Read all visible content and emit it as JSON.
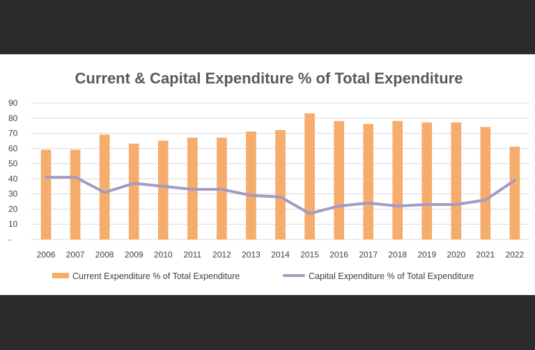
{
  "colors": {
    "bar": "#f6ad6b",
    "bar_stroke": "#f2a05a",
    "line": "#a49ac8",
    "grid": "#d9d9d9",
    "text": "#404040"
  },
  "chart_data": {
    "type": "bar",
    "title": "Current & Capital Expenditure % of Total Expenditure",
    "categories": [
      "2006",
      "2007",
      "2008",
      "2009",
      "2010",
      "2011",
      "2012",
      "2013",
      "2014",
      "2015",
      "2016",
      "2017",
      "2018",
      "2019",
      "2020",
      "2021",
      "2022"
    ],
    "series": [
      {
        "name": "Current Expenditure % of Total Expenditure",
        "type": "bar",
        "values": [
          59,
          59,
          69,
          63,
          65,
          67,
          67,
          71,
          72,
          83,
          78,
          76,
          78,
          77,
          77,
          74,
          61
        ]
      },
      {
        "name": "Capital Expenditure % of Total Expenditure",
        "type": "line",
        "values": [
          41,
          41,
          31,
          37,
          35,
          33,
          33,
          29,
          28,
          17,
          22,
          24,
          22,
          23,
          23,
          26,
          39
        ]
      }
    ],
    "ylim": [
      0,
      90
    ],
    "yticks": [
      "-",
      "10",
      "20",
      "30",
      "40",
      "50",
      "60",
      "70",
      "80",
      "90"
    ],
    "grid": true,
    "legend": "bottom"
  }
}
